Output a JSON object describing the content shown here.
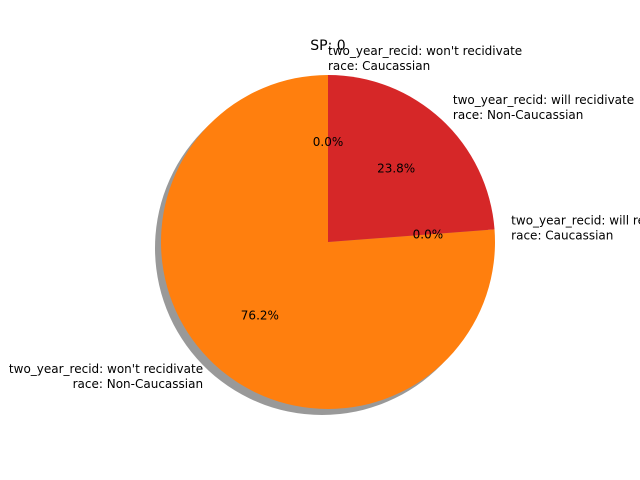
{
  "chart_data": {
    "type": "pie",
    "title": "SP: 0",
    "slices": [
      {
        "label_lines": [
          "two_year_recid: won't recidivate",
          "race: Caucassian"
        ],
        "value": 0.0,
        "pct_label": "0.0%",
        "color": "#1f77b4"
      },
      {
        "label_lines": [
          "two_year_recid: won't recidivate",
          "race: Non-Caucassian"
        ],
        "value": 76.2,
        "pct_label": "76.2%",
        "color": "#ff7f0e"
      },
      {
        "label_lines": [
          "two_year_recid: will recidivate",
          "race: Caucassian"
        ],
        "value": 0.0,
        "pct_label": "0.0%",
        "color": "#2ca02c"
      },
      {
        "label_lines": [
          "two_year_recid: will recidivate",
          "race: Non-Caucassian"
        ],
        "value": 23.8,
        "pct_label": "23.8%",
        "color": "#d62728"
      }
    ],
    "start_angle": 90,
    "shadow": true
  }
}
